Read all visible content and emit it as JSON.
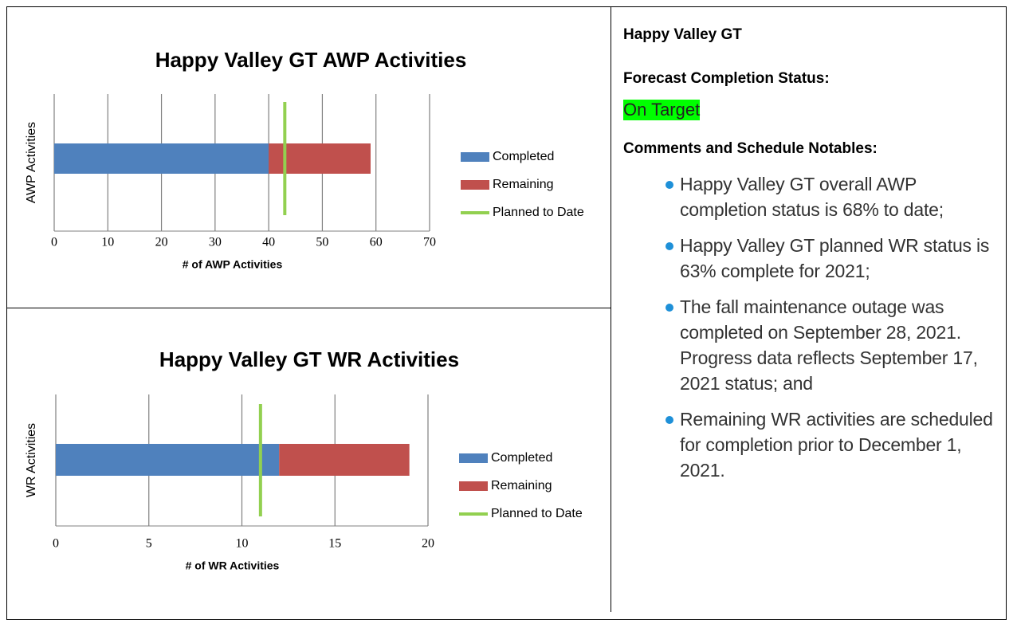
{
  "chart_data": [
    {
      "type": "bar",
      "orientation": "horizontal",
      "stacked": true,
      "title": "Happy Valley GT AWP Activities",
      "ylabel": "AWP Activities",
      "xlabel": "# of AWP Activities",
      "series": [
        {
          "name": "Completed",
          "color": "#4f81bd",
          "values": [
            40
          ]
        },
        {
          "name": "Remaining",
          "color": "#c0504d",
          "values": [
            19
          ]
        },
        {
          "name": "Planned to Date",
          "color": "#92d050",
          "type": "line",
          "values": [
            43
          ]
        }
      ],
      "xlim": [
        0,
        70
      ],
      "xticks": [
        0,
        10,
        20,
        30,
        40,
        50,
        60,
        70
      ],
      "grid": true,
      "legend": "right"
    },
    {
      "type": "bar",
      "orientation": "horizontal",
      "stacked": true,
      "title": "Happy Valley GT WR Activities",
      "ylabel": "WR Activities",
      "xlabel": "# of WR Activities",
      "series": [
        {
          "name": "Completed",
          "color": "#4f81bd",
          "values": [
            12
          ]
        },
        {
          "name": "Remaining",
          "color": "#c0504d",
          "values": [
            7
          ]
        },
        {
          "name": "Planned to Date",
          "color": "#92d050",
          "type": "line",
          "values": [
            11
          ]
        }
      ],
      "xlim": [
        0,
        20
      ],
      "xticks": [
        0,
        5,
        10,
        15,
        20
      ],
      "grid": true,
      "legend": "right"
    }
  ],
  "panel": {
    "title": "Happy Valley GT",
    "status_label": "Forecast Completion Status:",
    "status": "On Target",
    "comments_label": "Comments and Schedule Notables:",
    "bullets": [
      "Happy Valley GT overall AWP completion status is 68% to date;",
      "Happy Valley GT planned WR status is 63% complete for 2021;",
      "The fall maintenance outage was completed on September 28, 2021. Progress data reflects September 17, 2021 status; and",
      "Remaining WR activities are scheduled for completion prior to December 1, 2021."
    ]
  }
}
